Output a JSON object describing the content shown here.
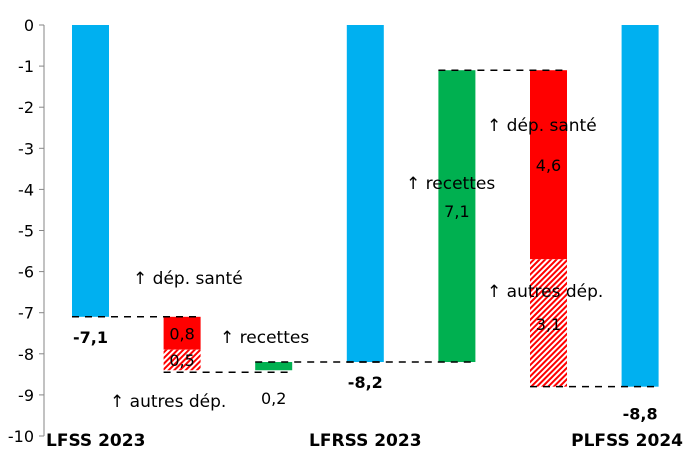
{
  "chart_data": {
    "type": "bar",
    "subtype": "waterfall",
    "ylim": [
      -10,
      0
    ],
    "yticks": [
      "0",
      "-1",
      "-2",
      "-3",
      "-4",
      "-5",
      "-6",
      "-7",
      "-8",
      "-9",
      "-10"
    ],
    "categories": [
      "LFSS 2023",
      "LFRSS 2023",
      "PLFSS 2024"
    ],
    "totals": [
      {
        "name": "LFSS 2023",
        "value": -7.1,
        "label": "-7,1"
      },
      {
        "name": "LFRSS 2023",
        "value": -8.2,
        "label": "-8,2"
      },
      {
        "name": "PLFSS 2024",
        "value": -8.8,
        "label": "-8,8"
      }
    ],
    "steps": [
      {
        "name": "dép. santé",
        "from": -7.1,
        "to": -7.9,
        "label": "0,8",
        "kind": "sante"
      },
      {
        "name": "autres dép.",
        "from": -7.9,
        "to": -8.4,
        "label": "0,5",
        "kind": "autres"
      },
      {
        "name": "recettes",
        "from": -8.4,
        "to": -8.2,
        "label": "0,2",
        "kind": "recettes"
      },
      {
        "name": "recettes",
        "from": -8.2,
        "to": -1.1,
        "label": "7,1",
        "kind": "recettes"
      },
      {
        "name": "dép. santé",
        "from": -1.1,
        "to": -5.7,
        "label": "4,6",
        "kind": "sante"
      },
      {
        "name": "autres dép.",
        "from": -5.7,
        "to": -8.8,
        "label": "3,1",
        "kind": "autres"
      }
    ],
    "annotations": {
      "sante": "↑ dép. santé",
      "recettes": "↑ recettes",
      "autres": "↑ autres dép."
    },
    "colors": {
      "total": "#00B0F0",
      "sante": "#FF0000",
      "recettes": "#00B050",
      "autres": "#FF0000"
    }
  }
}
